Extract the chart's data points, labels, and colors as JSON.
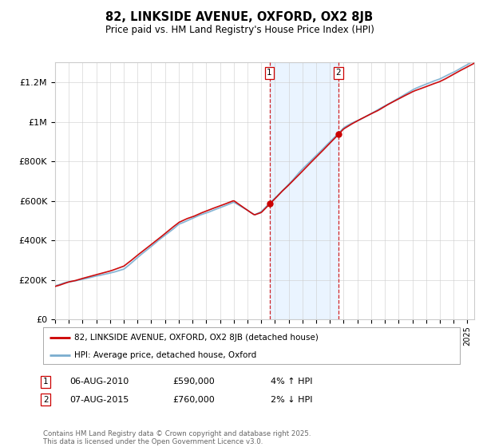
{
  "title": "82, LINKSIDE AVENUE, OXFORD, OX2 8JB",
  "subtitle": "Price paid vs. HM Land Registry's House Price Index (HPI)",
  "legend_line1": "82, LINKSIDE AVENUE, OXFORD, OX2 8JB (detached house)",
  "legend_line2": "HPI: Average price, detached house, Oxford",
  "legend_color1": "#cc0000",
  "legend_color2": "#7aadce",
  "transaction1_date": "06-AUG-2010",
  "transaction1_price": "£590,000",
  "transaction1_hpi": "4% ↑ HPI",
  "transaction2_date": "07-AUG-2015",
  "transaction2_price": "£760,000",
  "transaction2_hpi": "2% ↓ HPI",
  "copyright_text": "Contains HM Land Registry data © Crown copyright and database right 2025.\nThis data is licensed under the Open Government Licence v3.0.",
  "marker1_x": 2010.6,
  "marker2_x": 2015.6,
  "background_color": "#ffffff",
  "grid_color": "#cccccc",
  "hpi_fill_color": "#ddeeff",
  "ylim": [
    0,
    1300000
  ],
  "yticks": [
    0,
    200000,
    400000,
    600000,
    800000,
    1000000,
    1200000
  ],
  "ytick_labels": [
    "£0",
    "£200K",
    "£400K",
    "£600K",
    "£800K",
    "£1M",
    "£1.2M"
  ]
}
